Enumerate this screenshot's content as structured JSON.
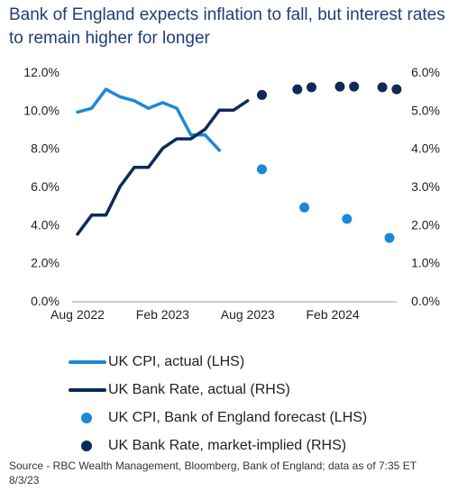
{
  "title": "Bank of England expects inflation to fall, but interest rates to remain higher for longer",
  "source": "Source - RBC Wealth Management, Bloomberg, Bank of England; data as of 7:35 ET 8/3/23",
  "colors": {
    "cpi": "#1e88d8",
    "bank_rate": "#0e2a57"
  },
  "legend": [
    {
      "label": "UK CPI, actual (LHS)",
      "kind": "line",
      "color": "#1e88d8"
    },
    {
      "label": "UK Bank Rate, actual (RHS)",
      "kind": "line",
      "color": "#0e2a57"
    },
    {
      "label": "UK CPI, Bank of England forecast (LHS)",
      "kind": "dot",
      "color": "#1e88d8"
    },
    {
      "label": "UK Bank Rate, market-implied (RHS)",
      "kind": "dot",
      "color": "#0e2a57"
    }
  ],
  "chart_data": {
    "type": "line",
    "x_ticks": [
      {
        "label": "Aug 2022",
        "x": 0
      },
      {
        "label": "Feb 2023",
        "x": 6
      },
      {
        "label": "Aug 2023",
        "x": 12
      },
      {
        "label": "Feb 2024",
        "x": 18
      }
    ],
    "x_range": [
      0,
      22
    ],
    "y_left": {
      "ticks": [
        "0.0%",
        "2.0%",
        "4.0%",
        "6.0%",
        "8.0%",
        "10.0%",
        "12.0%"
      ],
      "range": [
        0,
        12
      ]
    },
    "y_right": {
      "ticks": [
        "0.0%",
        "1.0%",
        "2.0%",
        "3.0%",
        "4.0%",
        "5.0%",
        "6.0%"
      ],
      "range": [
        0,
        6
      ]
    },
    "legend_position": "bottom",
    "grid": false,
    "series": [
      {
        "name": "UK CPI, actual (LHS)",
        "axis": "left",
        "style": "line",
        "points": [
          [
            0,
            9.9
          ],
          [
            1,
            10.1
          ],
          [
            2,
            11.1
          ],
          [
            3,
            10.7
          ],
          [
            4,
            10.5
          ],
          [
            5,
            10.1
          ],
          [
            6,
            10.4
          ],
          [
            7,
            10.1
          ],
          [
            8,
            8.7
          ],
          [
            9,
            8.7
          ],
          [
            10,
            7.9
          ]
        ]
      },
      {
        "name": "UK Bank Rate, actual (RHS)",
        "axis": "right",
        "style": "step",
        "points": [
          [
            0,
            1.75
          ],
          [
            1,
            2.25
          ],
          [
            2,
            2.25
          ],
          [
            3,
            3.0
          ],
          [
            4,
            3.5
          ],
          [
            5,
            3.5
          ],
          [
            6,
            4.0
          ],
          [
            7,
            4.25
          ],
          [
            8,
            4.25
          ],
          [
            9,
            4.5
          ],
          [
            10,
            5.0
          ],
          [
            11,
            5.0
          ],
          [
            12,
            5.25
          ]
        ]
      },
      {
        "name": "UK CPI, Bank of England forecast (LHS)",
        "axis": "left",
        "style": "dots",
        "points": [
          [
            13,
            6.9
          ],
          [
            16,
            4.9
          ],
          [
            19,
            4.3
          ],
          [
            22,
            3.3
          ]
        ]
      },
      {
        "name": "UK Bank Rate, market-implied (RHS)",
        "axis": "right",
        "style": "dots",
        "points": [
          [
            13,
            5.4
          ],
          [
            15.5,
            5.55
          ],
          [
            16.5,
            5.6
          ],
          [
            18.5,
            5.62
          ],
          [
            19.5,
            5.62
          ],
          [
            21.5,
            5.6
          ],
          [
            22.5,
            5.55
          ]
        ]
      }
    ]
  }
}
